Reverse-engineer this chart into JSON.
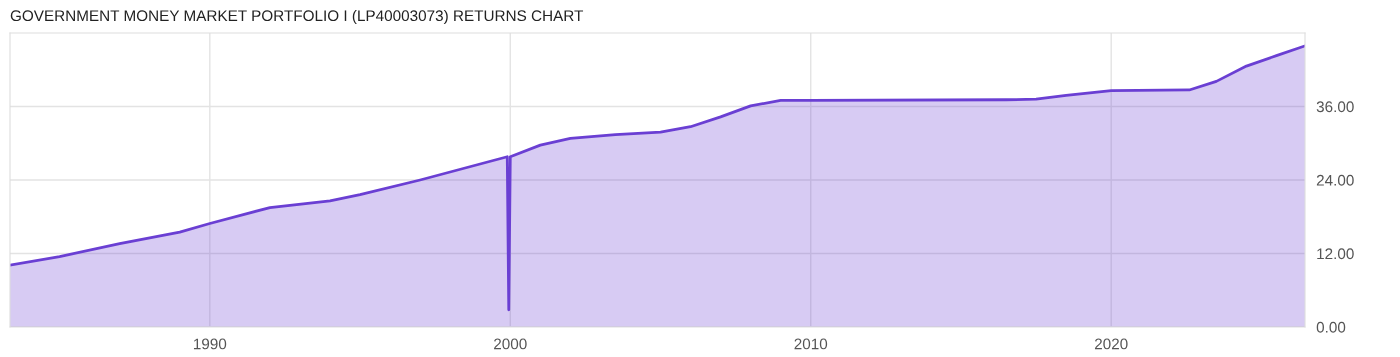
{
  "chart_data": {
    "type": "area",
    "title": "GOVERNMENT MONEY MARKET PORTFOLIO I (LP40003073) RETURNS CHART",
    "x": [
      1983.35,
      1985,
      1987,
      1989,
      1990,
      1992,
      1994,
      1995,
      1997,
      1999.9,
      1999.95,
      2000,
      2001,
      2002,
      2003.5,
      2005,
      2006,
      2007,
      2008,
      2009,
      2010,
      2016.5,
      2017.5,
      2018.5,
      2020,
      2022.6,
      2023.5,
      2024.5,
      2025.5,
      2026.45
    ],
    "series": [
      {
        "color": "#6a3fd3",
        "values": [
          10.1,
          11.5,
          13.6,
          15.5,
          16.9,
          19.5,
          20.6,
          21.6,
          24.0,
          27.8,
          2.8,
          27.8,
          29.7,
          30.8,
          31.4,
          31.8,
          32.7,
          34.3,
          36.1,
          37.0,
          37.0,
          37.1,
          37.2,
          37.8,
          38.6,
          38.7,
          40.1,
          42.6,
          44.3,
          45.9
        ]
      }
    ],
    "xlim": [
      1983.35,
      2026.45
    ],
    "xticks": [
      1990,
      2000,
      2010,
      2020
    ],
    "ylim": [
      0,
      48
    ],
    "yticks": [
      {
        "value": 0,
        "label": "0.00"
      },
      {
        "value": 12,
        "label": "12.00"
      },
      {
        "value": 24,
        "label": "24.00"
      },
      {
        "value": 36,
        "label": "36.00"
      }
    ],
    "grid": true,
    "legend": false
  }
}
